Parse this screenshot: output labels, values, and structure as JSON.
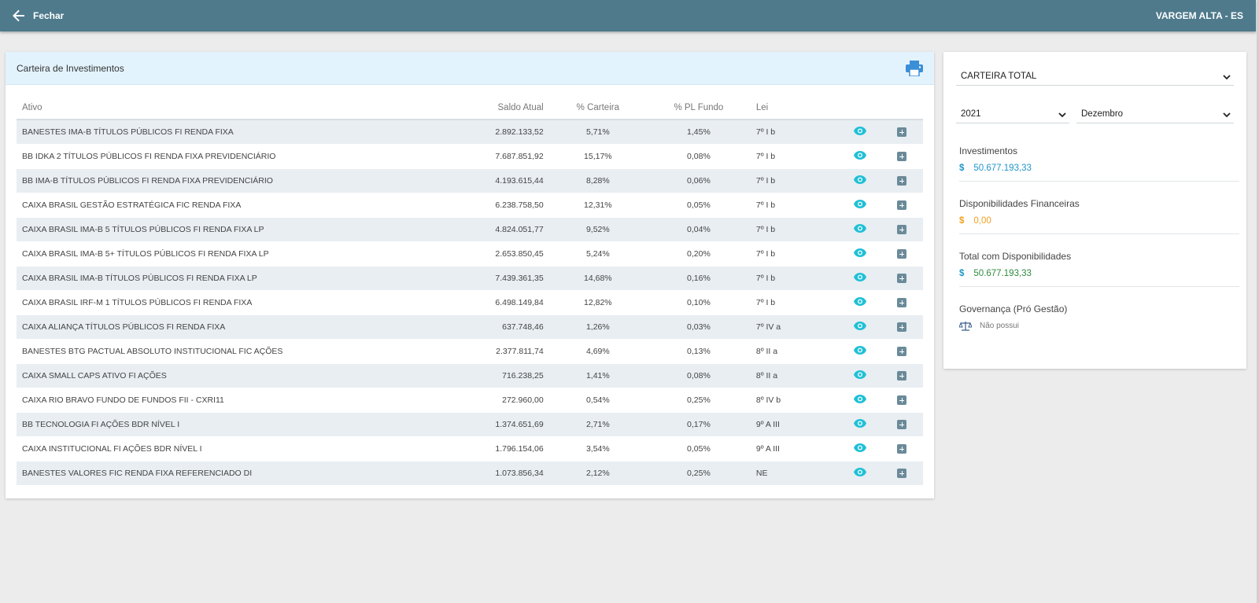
{
  "topbar": {
    "close_label": "Fechar",
    "municipality": "VARGEM ALTA - ES"
  },
  "portfolio": {
    "title": "Carteira de Investimentos",
    "columns": [
      "Ativo",
      "Saldo Atual",
      "% Carteira",
      "% PL Fundo",
      "Lei"
    ],
    "rows": [
      {
        "ativo": "BANESTES IMA-B TÍTULOS PÚBLICOS FI RENDA FIXA",
        "saldo": "2.892.133,52",
        "carteira": "5,71%",
        "pl": "1,45%",
        "lei": "7º I b"
      },
      {
        "ativo": "BB IDKA 2 TÍTULOS PÚBLICOS FI RENDA FIXA PREVIDENCIÁRIO",
        "saldo": "7.687.851,92",
        "carteira": "15,17%",
        "pl": "0,08%",
        "lei": "7º I b"
      },
      {
        "ativo": "BB IMA-B TÍTULOS PÚBLICOS FI RENDA FIXA PREVIDENCIÁRIO",
        "saldo": "4.193.615,44",
        "carteira": "8,28%",
        "pl": "0,06%",
        "lei": "7º I b"
      },
      {
        "ativo": "CAIXA BRASIL GESTÃO ESTRATÉGICA FIC RENDA FIXA",
        "saldo": "6.238.758,50",
        "carteira": "12,31%",
        "pl": "0,05%",
        "lei": "7º I b"
      },
      {
        "ativo": "CAIXA BRASIL IMA-B 5 TÍTULOS PÚBLICOS FI RENDA FIXA LP",
        "saldo": "4.824.051,77",
        "carteira": "9,52%",
        "pl": "0,04%",
        "lei": "7º I b"
      },
      {
        "ativo": "CAIXA BRASIL IMA-B 5+ TÍTULOS PÚBLICOS FI RENDA FIXA LP",
        "saldo": "2.653.850,45",
        "carteira": "5,24%",
        "pl": "0,20%",
        "lei": "7º I b"
      },
      {
        "ativo": "CAIXA BRASIL IMA-B TÍTULOS PÚBLICOS FI RENDA FIXA LP",
        "saldo": "7.439.361,35",
        "carteira": "14,68%",
        "pl": "0,16%",
        "lei": "7º I b"
      },
      {
        "ativo": "CAIXA BRASIL IRF-M 1 TÍTULOS PÚBLICOS FI RENDA FIXA",
        "saldo": "6.498.149,84",
        "carteira": "12,82%",
        "pl": "0,10%",
        "lei": "7º I b"
      },
      {
        "ativo": "CAIXA ALIANÇA TÍTULOS PÚBLICOS FI RENDA FIXA",
        "saldo": "637.748,46",
        "carteira": "1,26%",
        "pl": "0,03%",
        "lei": "7º IV a"
      },
      {
        "ativo": "BANESTES BTG PACTUAL ABSOLUTO INSTITUCIONAL FIC AÇÕES",
        "saldo": "2.377.811,74",
        "carteira": "4,69%",
        "pl": "0,13%",
        "lei": "8º II a"
      },
      {
        "ativo": "CAIXA SMALL CAPS ATIVO FI AÇÕES",
        "saldo": "716.238,25",
        "carteira": "1,41%",
        "pl": "0,08%",
        "lei": "8º II a"
      },
      {
        "ativo": "CAIXA RIO BRAVO FUNDO DE FUNDOS FII - CXRI11",
        "saldo": "272.960,00",
        "carteira": "0,54%",
        "pl": "0,25%",
        "lei": "8º IV b"
      },
      {
        "ativo": "BB TECNOLOGIA FI AÇÕES BDR NÍVEL I",
        "saldo": "1.374.651,69",
        "carteira": "2,71%",
        "pl": "0,17%",
        "lei": "9º A III"
      },
      {
        "ativo": "CAIXA INSTITUCIONAL FI AÇÕES BDR NÍVEL I",
        "saldo": "1.796.154,06",
        "carteira": "3,54%",
        "pl": "0,05%",
        "lei": "9º A III"
      },
      {
        "ativo": "BANESTES VALORES FIC RENDA FIXA REFERENCIADO DI",
        "saldo": "1.073.856,34",
        "carteira": "2,12%",
        "pl": "0,25%",
        "lei": "NE"
      }
    ]
  },
  "sidebar": {
    "portfolio_select": "CARTEIRA TOTAL",
    "year_select": "2021",
    "month_select": "Dezembro",
    "currency_symbol": "$",
    "investimentos": {
      "label": "Investimentos",
      "value": "50.677.193,33"
    },
    "disponibilidades": {
      "label": "Disponibilidades Financeiras",
      "value": "0,00"
    },
    "total": {
      "label": "Total com Disponibilidades",
      "value": "50.677.193,33"
    },
    "governanca": {
      "label": "Governança (Pró Gestão)",
      "value": "Não possui"
    }
  },
  "colors": {
    "topbar": "#4e7a8c",
    "investimentos": "#2196c9",
    "disponibilidades": "#f0a020",
    "total": "#2e8b3e",
    "eye_icon": "#1fc0d6"
  }
}
